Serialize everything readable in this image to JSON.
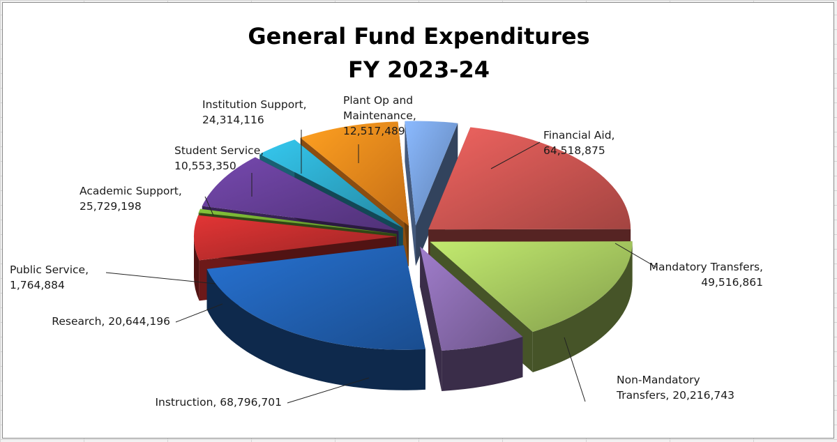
{
  "chart_data": {
    "type": "pie",
    "style": "3d-exploded",
    "title_lines": [
      "General Fund Expenditures",
      "FY 2023-24"
    ],
    "unit": "",
    "slices": [
      {
        "name": "Financial Aid",
        "value": 64518875,
        "value_label": "64,518,875",
        "color": "#c0504d",
        "label_lines": [
          "Financial Aid,",
          "64,518,875"
        ]
      },
      {
        "name": "Mandatory Transfers",
        "value": 49516861,
        "value_label": "49,516,861",
        "color": "#9bbb59",
        "label_lines": [
          "Mandatory Transfers,",
          "49,516,861"
        ]
      },
      {
        "name": "Non-Mandatory Transfers",
        "value": 20216743,
        "value_label": "20,216,743",
        "color": "#8064a2",
        "label_lines": [
          "Non-Mandatory",
          "Transfers, 20,216,743"
        ]
      },
      {
        "name": "Instruction",
        "value": 68796701,
        "value_label": "68,796,701",
        "color": "#1f5ba8",
        "label_lines": [
          "Instruction, 68,796,701"
        ]
      },
      {
        "name": "Research",
        "value": 20644196,
        "value_label": "20,644,196",
        "color": "#b52a2a",
        "label_lines": [
          "Research, 20,644,196"
        ]
      },
      {
        "name": "Public Service",
        "value": 1764884,
        "value_label": "1,764,884",
        "color": "#6a9e2e",
        "label_lines": [
          "Public Service,",
          "1,764,884"
        ]
      },
      {
        "name": "Academic Support",
        "value": 25729198,
        "value_label": "25,729,198",
        "color": "#5e3a8c",
        "label_lines": [
          "Academic Support,",
          "25,729,198"
        ]
      },
      {
        "name": "Student Service",
        "value": 10553350,
        "value_label": "10,553,350",
        "color": "#2aa0bf",
        "label_lines": [
          "Student Service,",
          "10,553,350"
        ]
      },
      {
        "name": "Institution Support",
        "value": 24314116,
        "value_label": "24,314,116",
        "color": "#e8811a",
        "label_lines": [
          "Institution Support,",
          "24,314,116"
        ]
      },
      {
        "name": "Plant Op and Maintenance",
        "value": 12517489,
        "value_label": "12,517,489",
        "color": "#6f95cf",
        "label_lines": [
          "Plant Op and",
          "Maintenance,",
          "12,517,489"
        ]
      }
    ],
    "legend": "none",
    "grid": false
  }
}
